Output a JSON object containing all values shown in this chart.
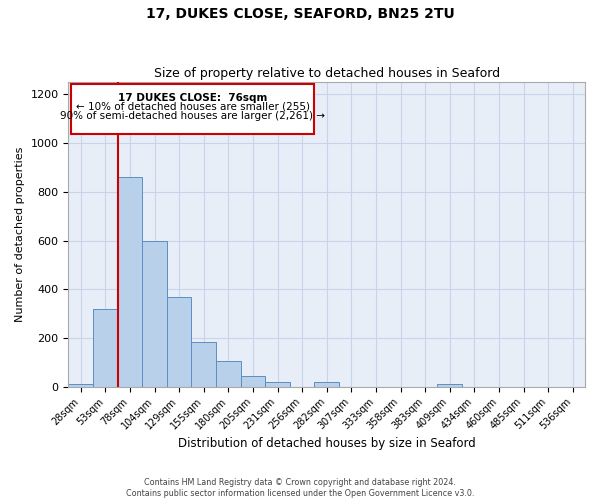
{
  "title": "17, DUKES CLOSE, SEAFORD, BN25 2TU",
  "subtitle": "Size of property relative to detached houses in Seaford",
  "xlabel": "Distribution of detached houses by size in Seaford",
  "ylabel": "Number of detached properties",
  "bin_labels": [
    "28sqm",
    "53sqm",
    "78sqm",
    "104sqm",
    "129sqm",
    "155sqm",
    "180sqm",
    "205sqm",
    "231sqm",
    "256sqm",
    "282sqm",
    "307sqm",
    "333sqm",
    "358sqm",
    "383sqm",
    "409sqm",
    "434sqm",
    "460sqm",
    "485sqm",
    "511sqm",
    "536sqm"
  ],
  "bar_values": [
    10,
    320,
    860,
    600,
    370,
    185,
    105,
    45,
    20,
    0,
    20,
    0,
    0,
    0,
    0,
    10,
    0,
    0,
    0,
    0,
    0
  ],
  "bar_color": "#b8d0ea",
  "bar_edge_color": "#5a8fc2",
  "background_color": "#e8eef8",
  "grid_color": "#c8d4e8",
  "marker_color": "#cc0000",
  "annotation_text_line1": "17 DUKES CLOSE:  76sqm",
  "annotation_text_line2": "← 10% of detached houses are smaller (255)",
  "annotation_text_line3": "90% of semi-detached houses are larger (2,261) →",
  "annotation_box_color": "#cc0000",
  "ylim": [
    0,
    1250
  ],
  "yticks": [
    0,
    200,
    400,
    600,
    800,
    1000,
    1200
  ],
  "footer_line1": "Contains HM Land Registry data © Crown copyright and database right 2024.",
  "footer_line2": "Contains public sector information licensed under the Open Government Licence v3.0."
}
